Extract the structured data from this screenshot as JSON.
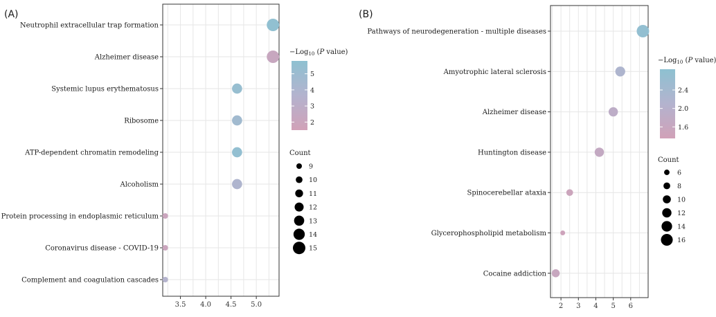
{
  "chart_data": [
    {
      "type": "scatter",
      "panel_label": "(A)",
      "categories": [
        "Neutrophil extracellular trap formation",
        "Alzheimer disease",
        "Systemic lupus erythematosus",
        "Ribosome",
        "ATP-dependent chromatin remodeling",
        "Alcoholism",
        "Protein processing in endoplasmic reticulum",
        "Coronavirus disease - COVID-19",
        "Complement and coagulation cascades"
      ],
      "x": [
        5.33,
        5.33,
        4.62,
        4.62,
        4.62,
        4.62,
        3.2,
        3.2,
        3.2
      ],
      "count": [
        15,
        15,
        13,
        13,
        13,
        13,
        9,
        9,
        9
      ],
      "color_value": [
        5.6,
        2.2,
        5.3,
        4.7,
        5.5,
        3.9,
        2.0,
        2.0,
        3.6
      ],
      "xlim": [
        3.15,
        5.45
      ],
      "xticks": [
        "3.5",
        "4.0",
        "4.5",
        "5.0"
      ],
      "xtick_values": [
        3.5,
        4.0,
        4.5,
        5.0
      ],
      "color_legend": {
        "title_prefix": "−Log",
        "title_sub": "10",
        "title_suffix": " (P value)",
        "range": [
          1.5,
          5.8
        ],
        "ticks": [
          "5",
          "4",
          "3",
          "2"
        ],
        "tick_values": [
          5,
          4,
          3,
          2
        ]
      },
      "size_legend": {
        "title": "Count",
        "labels": [
          "9",
          "10",
          "11",
          "12",
          "13",
          "14",
          "15"
        ],
        "values": [
          9,
          10,
          11,
          12,
          13,
          14,
          15
        ]
      },
      "size_range": [
        9,
        15
      ]
    },
    {
      "type": "scatter",
      "panel_label": "(B)",
      "categories": [
        "Pathways of neurodegeneration - multiple diseases",
        "Amyotrophic lateral sclerosis",
        "Alzheimer disease",
        "Huntington disease",
        "Spinocerebellar ataxia",
        "Glycerophospholipid metabolism",
        "Cocaine addiction"
      ],
      "x": [
        6.7,
        5.4,
        5.0,
        4.2,
        2.5,
        2.1,
        1.7
      ],
      "count": [
        17,
        13,
        12,
        12,
        8,
        5,
        10
      ],
      "color_value": [
        2.75,
        2.2,
        1.85,
        1.7,
        1.5,
        1.45,
        1.6
      ],
      "xlim": [
        1.4,
        7.0
      ],
      "xticks": [
        "2",
        "3",
        "4",
        "5",
        "6"
      ],
      "xtick_values": [
        2,
        3,
        4,
        5,
        6
      ],
      "color_legend": {
        "title_prefix": "−Log",
        "title_sub": "10",
        "title_suffix": " (P value)",
        "range": [
          1.35,
          2.85
        ],
        "ticks": [
          "2.4",
          "2.0",
          "1.6"
        ],
        "tick_values": [
          2.4,
          2.0,
          1.6
        ]
      },
      "size_legend": {
        "title": "Count",
        "labels": [
          "6",
          "8",
          "10",
          "12",
          "14",
          "16"
        ],
        "values": [
          6,
          8,
          10,
          12,
          14,
          16
        ]
      },
      "size_range": [
        5,
        17
      ]
    }
  ],
  "colors": {
    "high": "#8ec1d1",
    "mid": "#b3b3ce",
    "low": "#d1a1b8",
    "grid": "#e6e6e6",
    "frame": "#333333",
    "legend_dot": "#000000"
  }
}
